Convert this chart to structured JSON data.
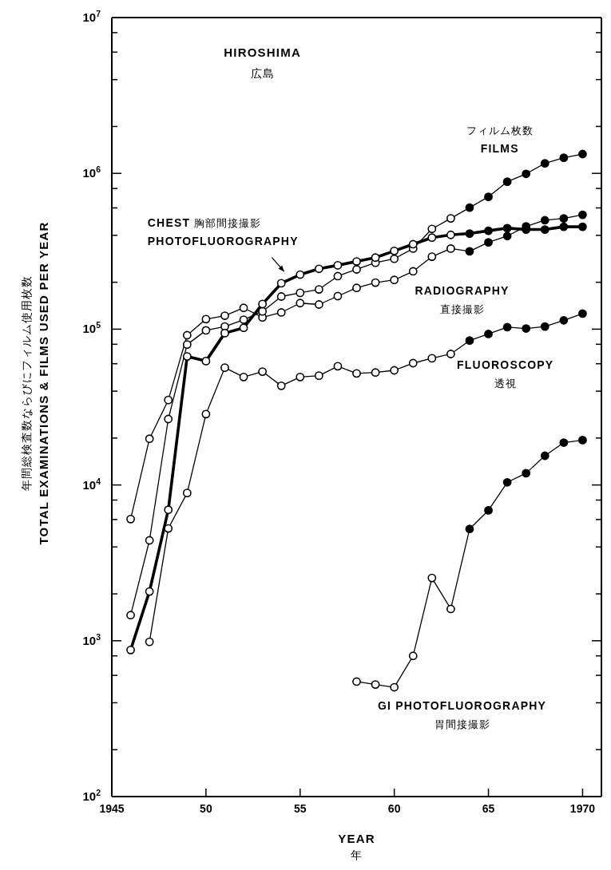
{
  "chart_data": {
    "type": "line",
    "title": "HIROSHIMA\n広島",
    "xlabel": "YEAR\n年",
    "ylabel": "年間総検査数ならびにフィルム使用枚数\nTOTAL EXAMINATIONS & FILMS USED PER YEAR",
    "x": [
      1946,
      1947,
      1948,
      1949,
      1950,
      1951,
      1952,
      1953,
      1954,
      1955,
      1956,
      1957,
      1958,
      1959,
      1960,
      1961,
      1962,
      1963,
      1964,
      1965,
      1966,
      1967,
      1968,
      1969,
      1970
    ],
    "series": [
      {
        "name": "RADIOGRAPHY\n直接撮影",
        "color": "#000000",
        "values": [
          6040,
          19800,
          35100,
          91400,
          116000,
          122000,
          137000,
          119000,
          128000,
          147000,
          144000,
          163000,
          184000,
          199000,
          207000,
          235000,
          292000,
          329000,
          316000,
          361000,
          396000,
          457000,
          500000,
          514000,
          542000
        ],
        "colors": [
          "#ffffff",
          "#ffffff",
          "#ffffff",
          "#ffffff",
          "#ffffff",
          "#ffffff",
          "#ffffff",
          "#ffffff",
          "#ffffff",
          "#ffffff",
          "#ffffff",
          "#ffffff",
          "#ffffff",
          "#ffffff",
          "#ffffff",
          "#ffffff",
          "#ffffff",
          "#ffffff",
          "#000000",
          "#000000",
          "#000000",
          "#000000",
          "#000000",
          "#000000",
          "#000000"
        ]
      },
      {
        "name": "フィルム枚数\nFILMS",
        "color": "#000000",
        "values": [
          1460,
          4410,
          26500,
          79700,
          98200,
          104000,
          115000,
          130000,
          162000,
          171000,
          180000,
          219000,
          242000,
          267000,
          283000,
          329000,
          440000,
          514000,
          603000,
          707000,
          884000,
          993000,
          1160000,
          1260000,
          1330000
        ],
        "colors": [
          "#ffffff",
          "#ffffff",
          "#ffffff",
          "#ffffff",
          "#ffffff",
          "#ffffff",
          "#ffffff",
          "#ffffff",
          "#ffffff",
          "#ffffff",
          "#ffffff",
          "#ffffff",
          "#ffffff",
          "#ffffff",
          "#ffffff",
          "#ffffff",
          "#ffffff",
          "#ffffff",
          "#000000",
          "#000000",
          "#000000",
          "#000000",
          "#000000",
          "#000000",
          "#000000"
        ]
      },
      {
        "name": "CHEST 胸部間接撮影\nPHOTOFLUOROGRAPHY",
        "color": "#000000",
        "values": [
          873,
          2070,
          6930,
          66800,
          62400,
          94300,
          102000,
          145000,
          197000,
          224000,
          244000,
          257000,
          272000,
          288000,
          318000,
          351000,
          387000,
          403000,
          411000,
          428000,
          445000,
          436000,
          436000,
          454000,
          454000
        ],
        "colors": [
          "#ffffff",
          "#ffffff",
          "#ffffff",
          "#ffffff",
          "#ffffff",
          "#ffffff",
          "#ffffff",
          "#ffffff",
          "#ffffff",
          "#ffffff",
          "#ffffff",
          "#ffffff",
          "#ffffff",
          "#ffffff",
          "#ffffff",
          "#ffffff",
          "#ffffff",
          "#ffffff",
          "#000000",
          "#000000",
          "#000000",
          "#000000",
          "#000000",
          "#000000",
          "#000000"
        ]
      },
      {
        "name": "FLUOROSCOPY\n透視",
        "color": "#000000",
        "values": [
          null,
          984,
          5260,
          8880,
          28500,
          56600,
          49300,
          53400,
          43300,
          49300,
          50300,
          57800,
          52000,
          52700,
          54400,
          60500,
          65000,
          69300,
          84500,
          93100,
          103000,
          101000,
          104000,
          114000,
          126000
        ],
        "colors": [
          null,
          "#ffffff",
          "#ffffff",
          "#ffffff",
          "#ffffff",
          "#ffffff",
          "#ffffff",
          "#ffffff",
          "#ffffff",
          "#ffffff",
          "#ffffff",
          "#ffffff",
          "#ffffff",
          "#ffffff",
          "#ffffff",
          "#ffffff",
          "#ffffff",
          "#ffffff",
          "#000000",
          "#000000",
          "#000000",
          "#000000",
          "#000000",
          "#000000",
          "#000000"
        ]
      },
      {
        "name": "GI PHOTOFLUOROGRAPHY\n胃間接撮影",
        "color": "#000000",
        "values": [
          null,
          null,
          null,
          null,
          null,
          null,
          null,
          null,
          null,
          null,
          null,
          null,
          547,
          524,
          503,
          800,
          2530,
          1600,
          5220,
          6870,
          10400,
          11900,
          15400,
          18700,
          19400
        ],
        "colors": [
          null,
          null,
          null,
          null,
          null,
          null,
          null,
          null,
          null,
          null,
          null,
          null,
          "#ffffff",
          "#ffffff",
          "#ffffff",
          "#ffffff",
          "#ffffff",
          "#ffffff",
          "#000000",
          "#000000",
          "#000000",
          "#000000",
          "#000000",
          "#000000",
          "#000000"
        ]
      }
    ],
    "xlim": [
      1945,
      1971
    ],
    "xticks": [
      1945,
      {
        "value": 1950,
        "label": "50"
      },
      {
        "value": 1955,
        "label": "55"
      },
      {
        "value": 1960,
        "label": "60"
      },
      {
        "value": 1965,
        "label": "65"
      },
      1970
    ],
    "ylim": [
      100,
      10000000
    ],
    "yticks": [
      {
        "value": 100,
        "label": "10$^{2}$"
      },
      {
        "value": 200,
        "label": null
      },
      {
        "value": 400,
        "label": null
      },
      {
        "value": 600,
        "label": null
      },
      {
        "value": 800,
        "label": null
      },
      {
        "value": 1000,
        "label": "10$^{3}$"
      },
      {
        "value": 2000,
        "label": null
      },
      {
        "value": 4000,
        "label": null
      },
      {
        "value": 6000,
        "label": null
      },
      {
        "value": 8000,
        "label": null
      },
      {
        "value": 10000,
        "label": "10$^{4}$"
      },
      {
        "value": 20000,
        "label": null
      },
      {
        "value": 40000,
        "label": null
      },
      {
        "value": 60000,
        "label": null
      },
      {
        "value": 80000,
        "label": null
      },
      {
        "value": 100000,
        "label": "10$^{5}$"
      },
      {
        "value": 200000,
        "label": null
      },
      {
        "value": 400000,
        "label": null
      },
      {
        "value": 600000,
        "label": null
      },
      {
        "value": 800000,
        "label": null
      },
      {
        "value": 1000000,
        "label": "10$^{6}$"
      },
      {
        "value": 2000000,
        "label": null
      },
      {
        "value": 4000000,
        "label": null
      },
      {
        "value": 6000000,
        "label": null
      },
      {
        "value": 8000000,
        "label": null
      },
      {
        "value": 10000000,
        "label": "10$^{7}$"
      }
    ],
    "log": true,
    "grid": false,
    "legend": false,
    "marker": "circle",
    "line_style": "solid"
  }
}
